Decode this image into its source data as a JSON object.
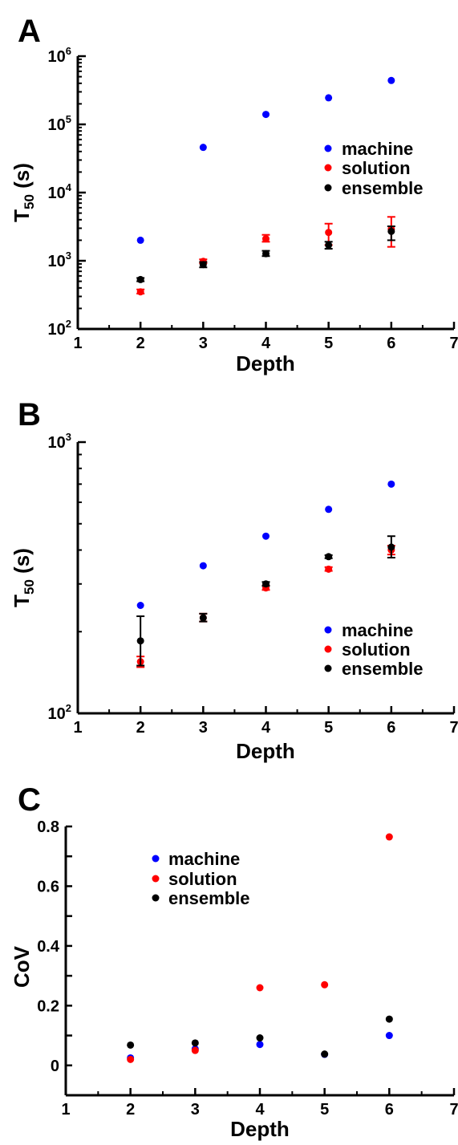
{
  "colors": {
    "machine": "#0000ff",
    "solution": "#ff0000",
    "ensemble": "#000000"
  },
  "chart_data": [
    {
      "panel": "A",
      "type": "scatter",
      "xlabel": "Depth",
      "ylabel_main": "T",
      "ylabel_sub": "50",
      "ylabel_unit": " (s)",
      "xlim": [
        1,
        7
      ],
      "ylim": [
        100,
        1000000
      ],
      "yscale": "log",
      "x_ticks": [
        "1",
        "2",
        "3",
        "4",
        "5",
        "6",
        "7"
      ],
      "y_ticks": [
        {
          "base": "10",
          "exp": "2"
        },
        {
          "base": "10",
          "exp": "3"
        },
        {
          "base": "10",
          "exp": "4"
        },
        {
          "base": "10",
          "exp": "5"
        },
        {
          "base": "10",
          "exp": "6"
        }
      ],
      "legend_position": "upper-right",
      "series": [
        {
          "name": "machine",
          "color_key": "machine",
          "x": [
            2,
            3,
            4,
            5,
            6
          ],
          "y": [
            2000,
            46000,
            140000,
            245000,
            440000
          ]
        },
        {
          "name": "solution",
          "color_key": "solution",
          "x": [
            2,
            3,
            4,
            5,
            6
          ],
          "y": [
            350,
            980,
            2100,
            2600,
            2900
          ],
          "err_low": [
            330,
            920,
            1900,
            1700,
            1600
          ],
          "err_high": [
            380,
            1050,
            2400,
            3500,
            4400
          ]
        },
        {
          "name": "ensemble",
          "color_key": "ensemble",
          "x": [
            2,
            3,
            4,
            5,
            6
          ],
          "y": [
            530,
            880,
            1270,
            1700,
            2700
          ],
          "err_low": [
            500,
            800,
            1170,
            1500,
            2000
          ],
          "err_high": [
            560,
            960,
            1400,
            1900,
            3200
          ]
        }
      ]
    },
    {
      "panel": "B",
      "type": "scatter",
      "xlabel": "Depth",
      "ylabel_main": "T",
      "ylabel_sub": "50",
      "ylabel_unit": " (s)",
      "xlim": [
        1,
        7
      ],
      "ylim": [
        100,
        1000
      ],
      "yscale": "log",
      "x_ticks": [
        "1",
        "2",
        "3",
        "4",
        "5",
        "6",
        "7"
      ],
      "y_ticks": [
        {
          "base": "10",
          "exp": "2"
        },
        {
          "base": "10",
          "exp": "3"
        }
      ],
      "legend_position": "lower-right",
      "series": [
        {
          "name": "machine",
          "color_key": "machine",
          "x": [
            2,
            3,
            4,
            5,
            6
          ],
          "y": [
            250,
            350,
            450,
            565,
            700
          ]
        },
        {
          "name": "solution",
          "color_key": "solution",
          "x": [
            2,
            3,
            4,
            5,
            6
          ],
          "y": [
            155,
            225,
            290,
            340,
            400
          ],
          "err_low": [
            148,
            218,
            285,
            335,
            385
          ],
          "err_high": [
            162,
            233,
            296,
            346,
            415
          ]
        },
        {
          "name": "ensemble",
          "color_key": "ensemble",
          "x": [
            2,
            3,
            4,
            5,
            6
          ],
          "y": [
            185,
            225,
            300,
            378,
            410
          ],
          "err_low": [
            150,
            218,
            295,
            373,
            375
          ],
          "err_high": [
            228,
            233,
            305,
            383,
            450
          ]
        }
      ]
    },
    {
      "panel": "C",
      "type": "scatter",
      "xlabel": "Depth",
      "ylabel_main": "CoV",
      "xlim": [
        1,
        7
      ],
      "ylim": [
        -0.1,
        0.8
      ],
      "yscale": "linear",
      "x_ticks": [
        "1",
        "2",
        "3",
        "4",
        "5",
        "6",
        "7"
      ],
      "y_ticks": [
        {
          "value": 0,
          "label": "0"
        },
        {
          "value": 0.2,
          "label": "0.2"
        },
        {
          "value": 0.4,
          "label": "0.4"
        },
        {
          "value": 0.6,
          "label": "0.6"
        },
        {
          "value": 0.8,
          "label": "0.8"
        }
      ],
      "legend_position": "upper-left",
      "series": [
        {
          "name": "machine",
          "color_key": "machine",
          "x": [
            2,
            3,
            4,
            5,
            6
          ],
          "y": [
            0.025,
            0.055,
            0.07,
            0.037,
            0.1
          ]
        },
        {
          "name": "solution",
          "color_key": "solution",
          "x": [
            2,
            3,
            4,
            5,
            6
          ],
          "y": [
            0.02,
            0.05,
            0.26,
            0.27,
            0.765
          ]
        },
        {
          "name": "ensemble",
          "color_key": "ensemble",
          "x": [
            2,
            3,
            4,
            5,
            6
          ],
          "y": [
            0.068,
            0.075,
            0.092,
            0.038,
            0.155
          ]
        }
      ]
    }
  ]
}
